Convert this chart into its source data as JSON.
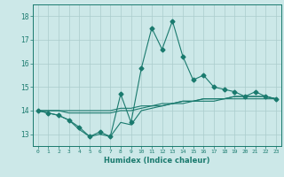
{
  "xlabel": "Humidex (Indice chaleur)",
  "bg_color": "#cce8e8",
  "line_color": "#1a7a6e",
  "grid_color": "#aacccc",
  "x_values": [
    0,
    1,
    2,
    3,
    4,
    5,
    6,
    7,
    8,
    9,
    10,
    11,
    12,
    13,
    14,
    15,
    16,
    17,
    18,
    19,
    20,
    21,
    22,
    23
  ],
  "series_main": [
    14.0,
    13.9,
    13.8,
    13.6,
    13.3,
    12.9,
    13.1,
    12.9,
    14.7,
    13.5,
    15.8,
    17.5,
    16.6,
    17.8,
    16.3,
    15.3,
    15.5,
    15.0,
    14.9,
    14.8,
    14.6,
    14.8,
    14.6,
    14.5
  ],
  "series_low": [
    14.0,
    13.9,
    13.8,
    13.6,
    13.2,
    12.9,
    13.0,
    12.9,
    13.5,
    13.4,
    14.0,
    14.1,
    14.2,
    14.3,
    14.4,
    14.4,
    14.5,
    14.5,
    14.5,
    14.6,
    14.6,
    14.6,
    14.6,
    14.5
  ],
  "series_mid": [
    14.0,
    14.0,
    14.0,
    13.9,
    13.9,
    13.9,
    13.9,
    13.9,
    14.0,
    14.0,
    14.1,
    14.2,
    14.2,
    14.3,
    14.3,
    14.4,
    14.4,
    14.4,
    14.5,
    14.5,
    14.5,
    14.5,
    14.5,
    14.5
  ],
  "series_high": [
    14.0,
    14.0,
    14.0,
    14.0,
    14.0,
    14.0,
    14.0,
    14.0,
    14.1,
    14.1,
    14.2,
    14.2,
    14.3,
    14.3,
    14.4,
    14.4,
    14.5,
    14.5,
    14.5,
    14.6,
    14.6,
    14.6,
    14.6,
    14.5
  ],
  "ylim": [
    12.5,
    18.5
  ],
  "yticks": [
    13,
    14,
    15,
    16,
    17,
    18
  ],
  "xticks": [
    0,
    1,
    2,
    3,
    4,
    5,
    6,
    7,
    8,
    9,
    10,
    11,
    12,
    13,
    14,
    15,
    16,
    17,
    18,
    19,
    20,
    21,
    22,
    23
  ]
}
